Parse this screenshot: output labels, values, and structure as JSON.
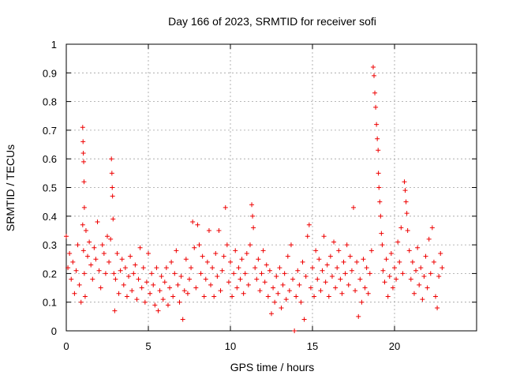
{
  "chart_data": {
    "type": "scatter",
    "title": "Day 166 of 2023, SRMTID for receiver sofi",
    "xlabel": "GPS time / hours",
    "ylabel": "SRMTID / TECUs",
    "xlim": [
      0,
      25
    ],
    "ylim": [
      0,
      1
    ],
    "grid": true,
    "marker": "plus",
    "marker_color": "#ee0000",
    "x_ticks": [
      0,
      5,
      10,
      15,
      20
    ],
    "x_tick_labels": [
      "0",
      "5",
      "10",
      "15",
      "20"
    ],
    "y_ticks": [
      0,
      0.1,
      0.2,
      0.3,
      0.4,
      0.5,
      0.6,
      0.7,
      0.8,
      0.9,
      1
    ],
    "y_tick_labels": [
      "0",
      "0.1",
      "0.2",
      "0.3",
      "0.4",
      "0.5",
      "0.6",
      "0.7",
      "0.8",
      "0.9",
      "1"
    ],
    "series": [
      {
        "name": "SRMTID",
        "points": [
          [
            0.0,
            0.33
          ],
          [
            0.1,
            0.22
          ],
          [
            0.2,
            0.27
          ],
          [
            0.3,
            0.18
          ],
          [
            0.4,
            0.24
          ],
          [
            0.5,
            0.13
          ],
          [
            0.6,
            0.21
          ],
          [
            0.7,
            0.3
          ],
          [
            0.8,
            0.16
          ],
          [
            0.9,
            0.1
          ],
          [
            1.0,
            0.71
          ],
          [
            1.02,
            0.66
          ],
          [
            1.04,
            0.62
          ],
          [
            1.06,
            0.59
          ],
          [
            1.08,
            0.52
          ],
          [
            1.1,
            0.43
          ],
          [
            1.0,
            0.37
          ],
          [
            1.05,
            0.28
          ],
          [
            1.1,
            0.2
          ],
          [
            1.15,
            0.12
          ],
          [
            1.2,
            0.35
          ],
          [
            1.3,
            0.26
          ],
          [
            1.4,
            0.31
          ],
          [
            1.5,
            0.23
          ],
          [
            1.6,
            0.18
          ],
          [
            1.7,
            0.29
          ],
          [
            1.8,
            0.25
          ],
          [
            1.9,
            0.38
          ],
          [
            2.0,
            0.21
          ],
          [
            2.1,
            0.15
          ],
          [
            2.2,
            0.3
          ],
          [
            2.3,
            0.27
          ],
          [
            2.4,
            0.2
          ],
          [
            2.5,
            0.33
          ],
          [
            2.6,
            0.24
          ],
          [
            2.7,
            0.32
          ],
          [
            2.75,
            0.6
          ],
          [
            2.78,
            0.55
          ],
          [
            2.8,
            0.5
          ],
          [
            2.82,
            0.47
          ],
          [
            2.85,
            0.39
          ],
          [
            2.9,
            0.2
          ],
          [
            2.95,
            0.07
          ],
          [
            3.0,
            0.18
          ],
          [
            3.1,
            0.27
          ],
          [
            3.2,
            0.13
          ],
          [
            3.3,
            0.21
          ],
          [
            3.4,
            0.25
          ],
          [
            3.5,
            0.16
          ],
          [
            3.6,
            0.22
          ],
          [
            3.7,
            0.12
          ],
          [
            3.8,
            0.19
          ],
          [
            3.9,
            0.26
          ],
          [
            4.0,
            0.14
          ],
          [
            4.1,
            0.2
          ],
          [
            4.2,
            0.23
          ],
          [
            4.3,
            0.11
          ],
          [
            4.4,
            0.18
          ],
          [
            4.5,
            0.29
          ],
          [
            4.6,
            0.15
          ],
          [
            4.7,
            0.22
          ],
          [
            4.8,
            0.1
          ],
          [
            4.9,
            0.17
          ],
          [
            5.0,
            0.27
          ],
          [
            5.1,
            0.13
          ],
          [
            5.2,
            0.2
          ],
          [
            5.3,
            0.16
          ],
          [
            5.4,
            0.09
          ],
          [
            5.5,
            0.22
          ],
          [
            5.6,
            0.07
          ],
          [
            5.7,
            0.14
          ],
          [
            5.8,
            0.19
          ],
          [
            5.9,
            0.11
          ],
          [
            6.0,
            0.17
          ],
          [
            6.1,
            0.22
          ],
          [
            6.2,
            0.09
          ],
          [
            6.3,
            0.15
          ],
          [
            6.4,
            0.24
          ],
          [
            6.5,
            0.12
          ],
          [
            6.6,
            0.2
          ],
          [
            6.7,
            0.28
          ],
          [
            6.8,
            0.16
          ],
          [
            6.9,
            0.1
          ],
          [
            7.0,
            0.19
          ],
          [
            7.1,
            0.04
          ],
          [
            7.2,
            0.14
          ],
          [
            7.3,
            0.25
          ],
          [
            7.4,
            0.13
          ],
          [
            7.5,
            0.18
          ],
          [
            7.6,
            0.22
          ],
          [
            7.7,
            0.38
          ],
          [
            7.8,
            0.29
          ],
          [
            7.9,
            0.15
          ],
          [
            8.0,
            0.37
          ],
          [
            8.1,
            0.3
          ],
          [
            8.2,
            0.2
          ],
          [
            8.3,
            0.26
          ],
          [
            8.4,
            0.12
          ],
          [
            8.5,
            0.18
          ],
          [
            8.6,
            0.24
          ],
          [
            8.7,
            0.35
          ],
          [
            8.8,
            0.16
          ],
          [
            8.9,
            0.22
          ],
          [
            9.0,
            0.12
          ],
          [
            9.1,
            0.27
          ],
          [
            9.2,
            0.19
          ],
          [
            9.3,
            0.35
          ],
          [
            9.4,
            0.14
          ],
          [
            9.5,
            0.21
          ],
          [
            9.6,
            0.26
          ],
          [
            9.7,
            0.43
          ],
          [
            9.8,
            0.3
          ],
          [
            9.9,
            0.17
          ],
          [
            10.0,
            0.24
          ],
          [
            10.1,
            0.12
          ],
          [
            10.2,
            0.2
          ],
          [
            10.3,
            0.28
          ],
          [
            10.4,
            0.15
          ],
          [
            10.5,
            0.22
          ],
          [
            10.6,
            0.18
          ],
          [
            10.7,
            0.25
          ],
          [
            10.8,
            0.13
          ],
          [
            10.9,
            0.2
          ],
          [
            11.0,
            0.27
          ],
          [
            11.1,
            0.16
          ],
          [
            11.2,
            0.3
          ],
          [
            11.3,
            0.44
          ],
          [
            11.35,
            0.4
          ],
          [
            11.4,
            0.36
          ],
          [
            11.5,
            0.22
          ],
          [
            11.6,
            0.18
          ],
          [
            11.7,
            0.25
          ],
          [
            11.8,
            0.14
          ],
          [
            11.9,
            0.2
          ],
          [
            12.0,
            0.28
          ],
          [
            12.1,
            0.17
          ],
          [
            12.2,
            0.23
          ],
          [
            12.3,
            0.12
          ],
          [
            12.4,
            0.21
          ],
          [
            12.5,
            0.06
          ],
          [
            12.6,
            0.15
          ],
          [
            12.7,
            0.1
          ],
          [
            12.8,
            0.19
          ],
          [
            12.9,
            0.13
          ],
          [
            13.0,
            0.22
          ],
          [
            13.1,
            0.08
          ],
          [
            13.2,
            0.16
          ],
          [
            13.3,
            0.2
          ],
          [
            13.4,
            0.11
          ],
          [
            13.5,
            0.26
          ],
          [
            13.6,
            0.14
          ],
          [
            13.7,
            0.3
          ],
          [
            13.8,
            0.18
          ],
          [
            13.9,
            0.0
          ],
          [
            14.0,
            0.12
          ],
          [
            14.1,
            0.21
          ],
          [
            14.2,
            0.16
          ],
          [
            14.3,
            0.1
          ],
          [
            14.4,
            0.24
          ],
          [
            14.5,
            0.04
          ],
          [
            14.6,
            0.19
          ],
          [
            14.7,
            0.33
          ],
          [
            14.8,
            0.37
          ],
          [
            14.9,
            0.15
          ],
          [
            15.0,
            0.22
          ],
          [
            15.1,
            0.12
          ],
          [
            15.2,
            0.28
          ],
          [
            15.3,
            0.18
          ],
          [
            15.4,
            0.25
          ],
          [
            15.5,
            0.14
          ],
          [
            15.6,
            0.21
          ],
          [
            15.7,
            0.33
          ],
          [
            15.8,
            0.17
          ],
          [
            15.9,
            0.23
          ],
          [
            16.0,
            0.12
          ],
          [
            16.1,
            0.26
          ],
          [
            16.2,
            0.19
          ],
          [
            16.3,
            0.31
          ],
          [
            16.4,
            0.15
          ],
          [
            16.5,
            0.22
          ],
          [
            16.6,
            0.28
          ],
          [
            16.7,
            0.18
          ],
          [
            16.8,
            0.13
          ],
          [
            16.9,
            0.24
          ],
          [
            17.0,
            0.2
          ],
          [
            17.1,
            0.3
          ],
          [
            17.2,
            0.16
          ],
          [
            17.3,
            0.26
          ],
          [
            17.4,
            0.21
          ],
          [
            17.5,
            0.43
          ],
          [
            17.6,
            0.14
          ],
          [
            17.7,
            0.24
          ],
          [
            17.8,
            0.05
          ],
          [
            17.9,
            0.18
          ],
          [
            18.0,
            0.1
          ],
          [
            18.1,
            0.25
          ],
          [
            18.2,
            0.15
          ],
          [
            18.3,
            0.22
          ],
          [
            18.4,
            0.13
          ],
          [
            18.5,
            0.2
          ],
          [
            18.6,
            0.28
          ],
          [
            18.7,
            0.92
          ],
          [
            18.75,
            0.89
          ],
          [
            18.8,
            0.83
          ],
          [
            18.85,
            0.78
          ],
          [
            18.9,
            0.72
          ],
          [
            18.95,
            0.67
          ],
          [
            19.0,
            0.63
          ],
          [
            19.02,
            0.55
          ],
          [
            19.05,
            0.5
          ],
          [
            19.1,
            0.45
          ],
          [
            19.15,
            0.4
          ],
          [
            19.2,
            0.34
          ],
          [
            19.25,
            0.3
          ],
          [
            19.3,
            0.21
          ],
          [
            19.4,
            0.17
          ],
          [
            19.5,
            0.25
          ],
          [
            19.6,
            0.12
          ],
          [
            19.7,
            0.19
          ],
          [
            19.8,
            0.27
          ],
          [
            19.9,
            0.15
          ],
          [
            20.0,
            0.22
          ],
          [
            20.1,
            0.18
          ],
          [
            20.2,
            0.31
          ],
          [
            20.3,
            0.24
          ],
          [
            20.4,
            0.36
          ],
          [
            20.5,
            0.2
          ],
          [
            20.6,
            0.52
          ],
          [
            20.65,
            0.49
          ],
          [
            20.7,
            0.45
          ],
          [
            20.75,
            0.41
          ],
          [
            20.8,
            0.35
          ],
          [
            20.9,
            0.28
          ],
          [
            21.0,
            0.18
          ],
          [
            21.1,
            0.24
          ],
          [
            21.2,
            0.13
          ],
          [
            21.3,
            0.21
          ],
          [
            21.4,
            0.29
          ],
          [
            21.5,
            0.16
          ],
          [
            21.6,
            0.22
          ],
          [
            21.7,
            0.11
          ],
          [
            21.8,
            0.19
          ],
          [
            21.9,
            0.26
          ],
          [
            22.0,
            0.15
          ],
          [
            22.1,
            0.32
          ],
          [
            22.2,
            0.2
          ],
          [
            22.3,
            0.36
          ],
          [
            22.4,
            0.24
          ],
          [
            22.5,
            0.12
          ],
          [
            22.6,
            0.08
          ],
          [
            22.7,
            0.19
          ],
          [
            22.8,
            0.27
          ],
          [
            22.9,
            0.22
          ]
        ]
      }
    ]
  }
}
